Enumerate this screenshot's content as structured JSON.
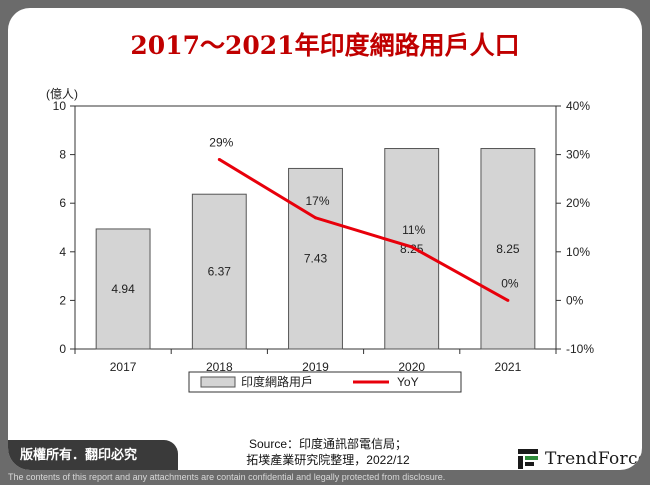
{
  "title": "2017～2021年印度網路用戶人口",
  "chart_data": {
    "type": "bar",
    "categories": [
      "2017",
      "2018",
      "2019",
      "2020",
      "2021"
    ],
    "series": [
      {
        "name": "印度網路用戶",
        "type": "bar",
        "axis": "left",
        "values": [
          4.94,
          6.37,
          7.43,
          8.25,
          8.25
        ],
        "labels": [
          "4.94",
          "6.37",
          "7.43",
          "8.25",
          "8.25"
        ],
        "color": "#d4d4d4"
      },
      {
        "name": "YoY",
        "type": "line",
        "axis": "right",
        "values": [
          null,
          29,
          17,
          11,
          0
        ],
        "labels": [
          "",
          "29%",
          "17%",
          "11%",
          "0%"
        ],
        "color": "#e8000b"
      }
    ],
    "ylabel_left": "(億人)",
    "ylim_left": [
      0,
      10
    ],
    "yticks_left": [
      "0",
      "2",
      "4",
      "6",
      "8",
      "10"
    ],
    "ylim_right": [
      -10,
      40
    ],
    "yticks_right": [
      "-10%",
      "0%",
      "10%",
      "20%",
      "30%",
      "40%"
    ],
    "legend_position": "bottom",
    "grid": false
  },
  "source": {
    "line1": "Source：印度通訊部電信局；",
    "line2": "拓墣產業研究院整理，2022/12"
  },
  "footer": {
    "copyright": "版權所有．翻印必究",
    "brand": "TrendForce"
  },
  "disclaimer": "The contents of this report and any attachments are contain confidential and legally protected from disclosure.",
  "colors": {
    "title": "#c00000",
    "bar": "#d4d4d4",
    "line": "#e8000b",
    "frame": "#6b6b6b"
  }
}
